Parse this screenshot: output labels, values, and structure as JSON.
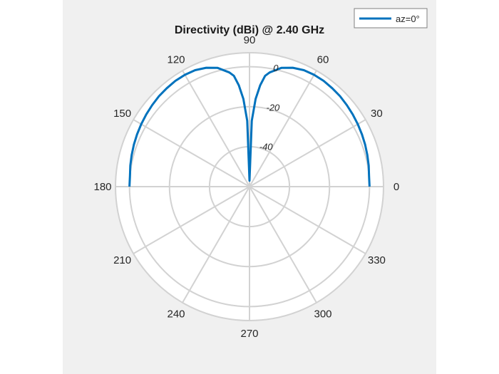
{
  "chart_data": {
    "type": "line",
    "subtype": "polar",
    "title": "Directivity (dBi) @ 2.40 GHz",
    "theta_ticks": [
      0,
      30,
      60,
      90,
      120,
      150,
      180,
      210,
      240,
      270,
      300,
      330
    ],
    "r_ticks": [
      0,
      -20,
      -40
    ],
    "r_lim": [
      -60,
      7
    ],
    "grid": true,
    "legend_position": "top-right",
    "series": [
      {
        "name": "az=0°",
        "color": "#0072bd",
        "theta": [
          0,
          5,
          10,
          15,
          20,
          25,
          30,
          35,
          40,
          45,
          50,
          55,
          60,
          65,
          70,
          75,
          80,
          82,
          84,
          86,
          88,
          90,
          92,
          94,
          96,
          98,
          100,
          105,
          110,
          115,
          120,
          125,
          130,
          135,
          140,
          145,
          150,
          155,
          160,
          165,
          170,
          175,
          180
        ],
        "r": [
          0,
          0,
          0.5,
          1,
          1.5,
          2,
          2.5,
          3,
          3.5,
          4,
          4.3,
          4.6,
          4.6,
          4.3,
          3.3,
          1.5,
          -2,
          -4,
          -9,
          -16,
          -27,
          -57,
          -27,
          -16,
          -9,
          -4,
          -2,
          1.5,
          3.3,
          4.3,
          4.6,
          4.6,
          4.3,
          4,
          3.5,
          3,
          2.5,
          2,
          1.5,
          1,
          0.5,
          0,
          0
        ]
      }
    ]
  }
}
